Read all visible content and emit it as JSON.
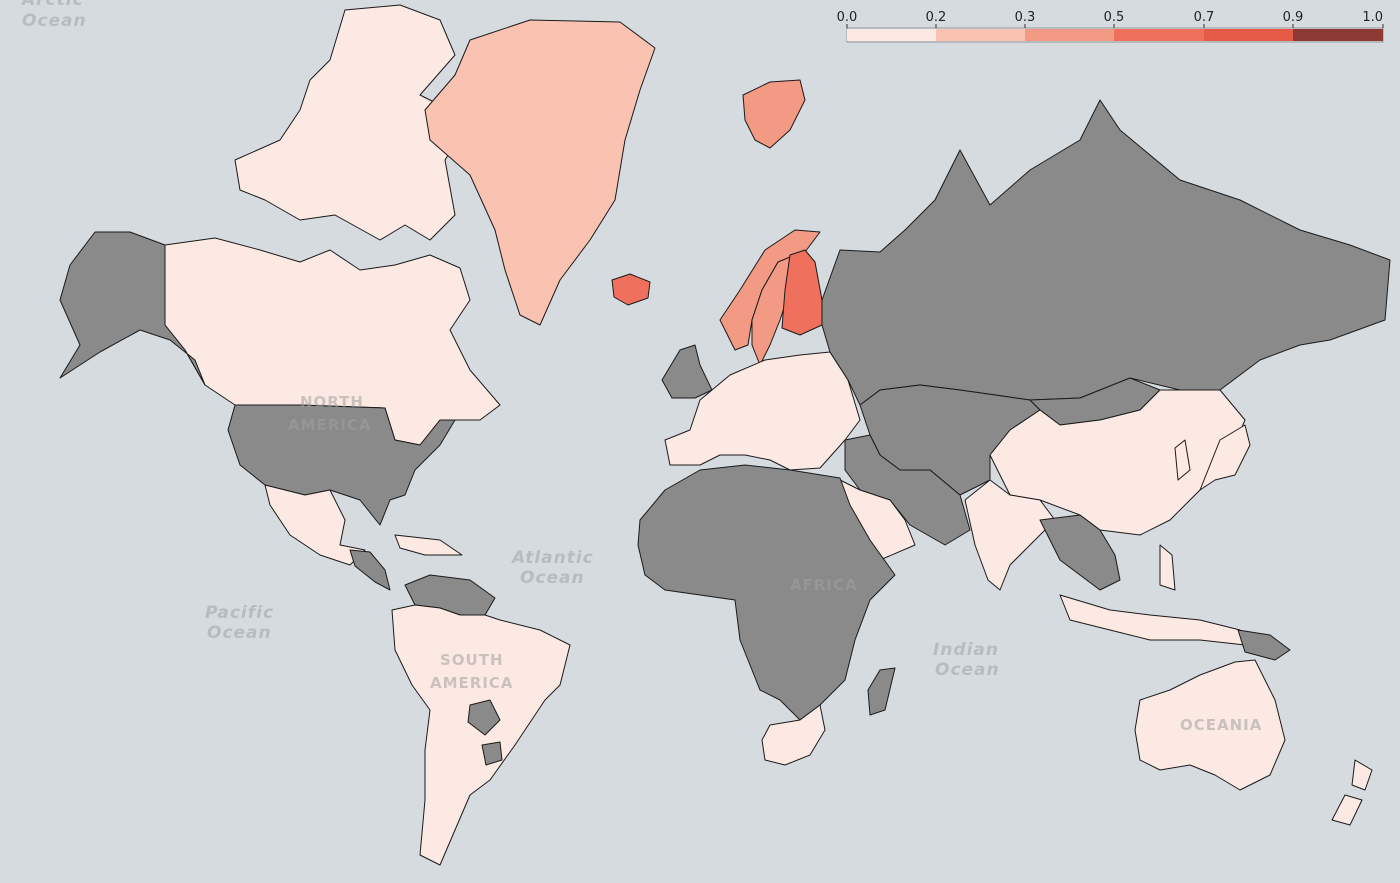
{
  "map": {
    "projection": "mercator",
    "background_color": "#d6dbe0",
    "no_data_color": "#8a8a8a",
    "border_color": "#1a1a1a"
  },
  "legend": {
    "ticks": [
      "0.0",
      "0.2",
      "0.3",
      "0.5",
      "0.7",
      "0.9",
      "1.0"
    ],
    "bins": [
      {
        "from": 0.0,
        "to": 0.2,
        "color": "#fde9e3"
      },
      {
        "from": 0.2,
        "to": 0.3,
        "color": "#f9c2b1"
      },
      {
        "from": 0.3,
        "to": 0.5,
        "color": "#f39a84"
      },
      {
        "from": 0.5,
        "to": 0.7,
        "color": "#ef705c"
      },
      {
        "from": 0.7,
        "to": 0.9,
        "color": "#e65a48"
      },
      {
        "from": 0.9,
        "to": 1.0,
        "color": "#8c3a33"
      }
    ]
  },
  "labels": {
    "arctic_ocean": [
      "Arctic",
      "Ocean"
    ],
    "atlantic_ocean": [
      "Atlantic",
      "Ocean"
    ],
    "pacific_ocean": [
      "Pacific",
      "Ocean"
    ],
    "indian_ocean": [
      "Indian",
      "Ocean"
    ],
    "north_america": [
      "NORTH",
      "AMERICA"
    ],
    "south_america": [
      "SOUTH",
      "AMERICA"
    ],
    "africa": "AFRICA",
    "oceania": "OCEANIA"
  },
  "countries": [
    {
      "id": "greenland",
      "color": "#f9c2b1"
    },
    {
      "id": "iceland",
      "color": "#ef705c"
    },
    {
      "id": "svalbard",
      "color": "#f39a84"
    },
    {
      "id": "norway",
      "color": "#f39a84"
    },
    {
      "id": "sweden",
      "color": "#f39a84"
    },
    {
      "id": "finland",
      "color": "#ef705c"
    },
    {
      "id": "canada",
      "color": "#fde9e3"
    },
    {
      "id": "arctic-islands",
      "color": "#fde9e3"
    },
    {
      "id": "alaska",
      "color": "#8a8a8a"
    },
    {
      "id": "usa",
      "color": "#8a8a8a"
    },
    {
      "id": "mexico",
      "color": "#fde9e3"
    },
    {
      "id": "central-america",
      "color": "#8a8a8a"
    },
    {
      "id": "caribbean-islands",
      "color": "#fde9e3"
    },
    {
      "id": "venezuela-guyana",
      "color": "#8a8a8a"
    },
    {
      "id": "south-america",
      "color": "#fde9e3"
    },
    {
      "id": "paraguay",
      "color": "#8a8a8a"
    },
    {
      "id": "uruguay",
      "color": "#8a8a8a"
    },
    {
      "id": "europe",
      "color": "#fde9e3"
    },
    {
      "id": "uk-ireland",
      "color": "#8a8a8a"
    },
    {
      "id": "russia",
      "color": "#8a8a8a"
    },
    {
      "id": "central-asia",
      "color": "#8a8a8a"
    },
    {
      "id": "middle-east",
      "color": "#8a8a8a"
    },
    {
      "id": "saudi-arabia",
      "color": "#fde9e3"
    },
    {
      "id": "africa",
      "color": "#8a8a8a"
    },
    {
      "id": "south-africa",
      "color": "#fde9e3"
    },
    {
      "id": "madagascar",
      "color": "#8a8a8a"
    },
    {
      "id": "china",
      "color": "#fde9e3"
    },
    {
      "id": "mongolia",
      "color": "#8a8a8a"
    },
    {
      "id": "india",
      "color": "#fde9e3"
    },
    {
      "id": "southeast-asia",
      "color": "#8a8a8a"
    },
    {
      "id": "korea-japan",
      "color": "#fde9e3"
    },
    {
      "id": "indonesia-philippines",
      "color": "#fde9e3"
    },
    {
      "id": "papua",
      "color": "#8a8a8a"
    },
    {
      "id": "australia",
      "color": "#fde9e3"
    },
    {
      "id": "new-zealand",
      "color": "#fde9e3"
    }
  ]
}
